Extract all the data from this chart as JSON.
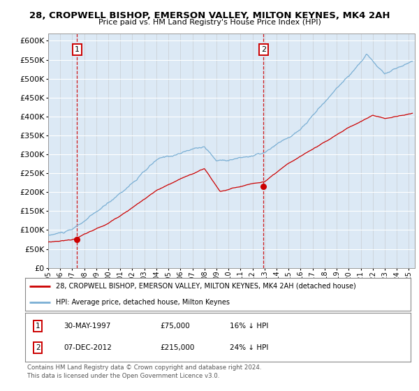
{
  "title1": "28, CROPWELL BISHOP, EMERSON VALLEY, MILTON KEYNES, MK4 2AH",
  "title2": "Price paid vs. HM Land Registry's House Price Index (HPI)",
  "legend_red": "28, CROPWELL BISHOP, EMERSON VALLEY, MILTON KEYNES, MK4 2AH (detached house)",
  "legend_blue": "HPI: Average price, detached house, Milton Keynes",
  "annotation1_date": "30-MAY-1997",
  "annotation1_price": "£75,000",
  "annotation1_hpi": "16% ↓ HPI",
  "annotation2_date": "07-DEC-2012",
  "annotation2_price": "£215,000",
  "annotation2_hpi": "24% ↓ HPI",
  "footnote1": "Contains HM Land Registry data © Crown copyright and database right 2024.",
  "footnote2": "This data is licensed under the Open Government Licence v3.0.",
  "bg_color": "#dce9f5",
  "ylim_min": 0,
  "ylim_max": 620000,
  "yticks": [
    0,
    50000,
    100000,
    150000,
    200000,
    250000,
    300000,
    350000,
    400000,
    450000,
    500000,
    550000,
    600000
  ],
  "red_color": "#cc0000",
  "blue_color": "#7aafd4",
  "sale1_year": 1997.41,
  "sale1_value": 75000,
  "sale2_year": 2012.92,
  "sale2_value": 215000
}
